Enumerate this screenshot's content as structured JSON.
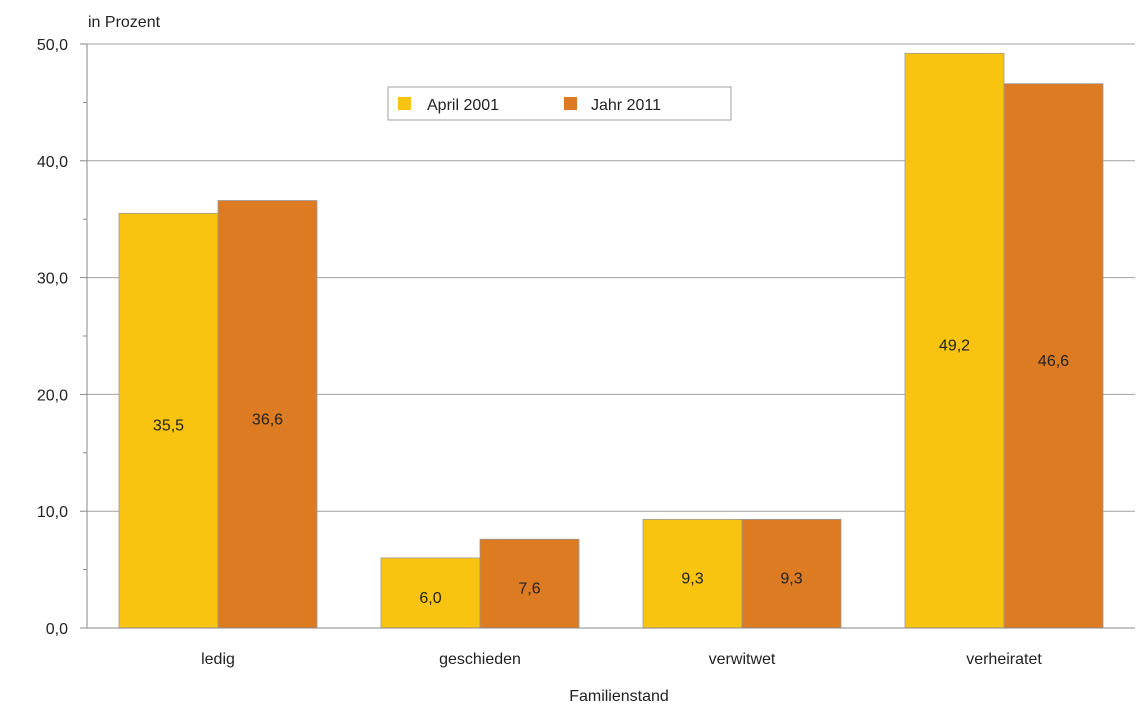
{
  "chart_data": {
    "type": "bar",
    "ylabel": "in Prozent",
    "xlabel": "Familienstand",
    "categories": [
      "ledig",
      "geschieden",
      "verwitwet",
      "verheiratet"
    ],
    "series": [
      {
        "name": "April 2001",
        "values": [
          35.5,
          6.0,
          9.3,
          49.2
        ],
        "labels": [
          "35,5",
          "6,0",
          "9,3",
          "49,2"
        ],
        "color": "#F9C40F"
      },
      {
        "name": "Jahr 2011",
        "values": [
          36.6,
          7.6,
          9.3,
          46.6
        ],
        "labels": [
          "36,6",
          "7,6",
          "9,3",
          "46,6"
        ],
        "color": "#DD7B22"
      }
    ],
    "ylim": [
      0,
      50
    ],
    "yticks": [
      0,
      10,
      20,
      30,
      40,
      50
    ],
    "ytick_labels": [
      "0,0",
      "10,0",
      "20,0",
      "30,0",
      "40,0",
      "50,0"
    ],
    "grid": true,
    "legend": "top-center"
  }
}
